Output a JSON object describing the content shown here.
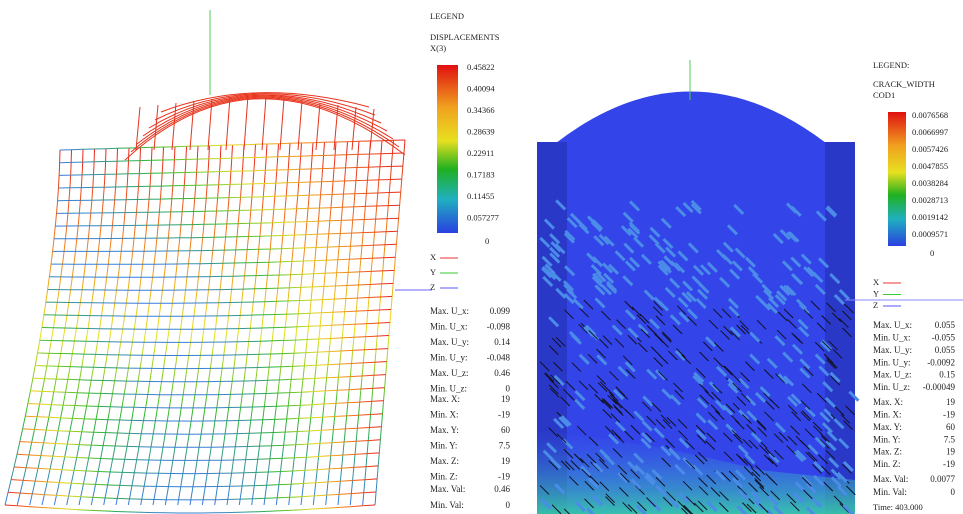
{
  "left": {
    "legend_title": "LEGEND",
    "quantity": "DISPLACEMENTS",
    "component": "X(3)",
    "scale": [
      "0.45822",
      "0.40094",
      "0.34366",
      "0.28639",
      "0.22911",
      "0.17183",
      "0.11455",
      "0.057277",
      "0"
    ],
    "axes": [
      "X",
      "Y",
      "Z"
    ],
    "stats": [
      [
        "Max. U_x:",
        "0.099"
      ],
      [
        "Min. U_x:",
        "-0.098"
      ],
      [
        "Max. U_y:",
        "0.14"
      ],
      [
        "Min. U_y:",
        "-0.048"
      ],
      [
        "Max. U_z:",
        "0.46"
      ],
      [
        "Min. U_z:",
        "0"
      ]
    ],
    "bounds": [
      [
        "Max. X:",
        "19"
      ],
      [
        "Min. X:",
        "-19"
      ],
      [
        "Max. Y:",
        "60"
      ],
      [
        "Min. Y:",
        "7.5"
      ],
      [
        "Max. Z:",
        "19"
      ],
      [
        "Min. Z:",
        "-19"
      ]
    ],
    "vals": [
      [
        "Max. Val:",
        "0.46"
      ],
      [
        "Min. Val:",
        "0"
      ]
    ]
  },
  "right": {
    "legend_title": "LEGEND:",
    "quantity": "CRACK_WIDTH",
    "component": "COD1",
    "scale": [
      "0.0076568",
      "0.0066997",
      "0.0057426",
      "0.0047855",
      "0.0038284",
      "0.0028713",
      "0.0019142",
      "0.0009571",
      "0"
    ],
    "axes": [
      "X",
      "Y",
      "Z"
    ],
    "stats": [
      [
        "Max. U_x:",
        "0.055"
      ],
      [
        "Min. U_x:",
        "-0.055"
      ],
      [
        "Max. U_y:",
        "0.055"
      ],
      [
        "Min. U_y:",
        "-0.0092"
      ],
      [
        "Max. U_z:",
        "0.15"
      ],
      [
        "Min. U_z:",
        "-0.00049"
      ]
    ],
    "bounds": [
      [
        "Max. X:",
        "19"
      ],
      [
        "Min. X:",
        "-19"
      ],
      [
        "Max. Y:",
        "60"
      ],
      [
        "Min. Y:",
        "7.5"
      ],
      [
        "Max. Z:",
        "19"
      ],
      [
        "Min. Z:",
        "-19"
      ]
    ],
    "vals": [
      [
        "Max. Val:",
        "0.0077"
      ],
      [
        "Min. Val:",
        "0"
      ]
    ],
    "time": "Time: 403.000"
  }
}
